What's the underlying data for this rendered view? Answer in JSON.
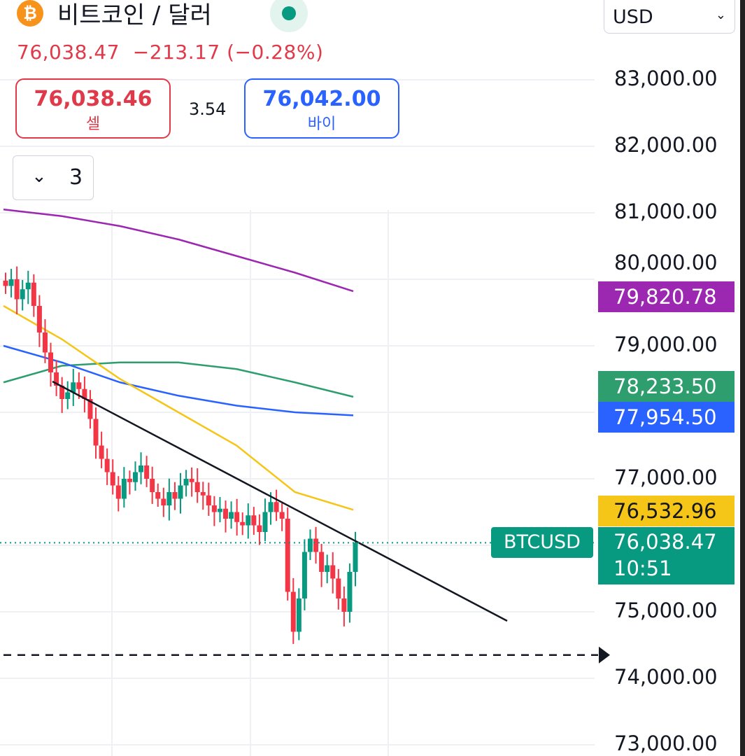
{
  "header": {
    "title": "비트코인 / 달러",
    "coin_icon": "bitcoin-icon",
    "market_status": "open",
    "price_line": "76,038.47  −213.17 (−0.28%)",
    "currency": "USD"
  },
  "trade": {
    "sell_price": "76,038.46",
    "sell_label": "셀",
    "spread": "3.54",
    "buy_price": "76,042.00",
    "buy_label": "바이"
  },
  "indicators_toggle": {
    "count": "3"
  },
  "colors": {
    "up": "#089981",
    "down": "#f23645",
    "ma_purple": "#9c27b0",
    "ma_yellow": "#f5c518",
    "ma_green": "#2e9e6e",
    "ma_blue": "#2962ff"
  },
  "chart_data": {
    "type": "candlestick",
    "symbol": "BTCUSD",
    "ylim": [
      73000,
      83400
    ],
    "yticks": [
      "83,000.00",
      "82,000.00",
      "81,000.00",
      "80,000.00",
      "79,000.00",
      "77,000.00",
      "75,000.00",
      "74,000.00",
      "73,000.00"
    ],
    "ytick_values": [
      83000,
      82000,
      81000,
      80000,
      79000,
      77000,
      75000,
      74000,
      73000
    ],
    "closes": [
      79900,
      80000,
      79700,
      79850,
      79950,
      79600,
      79200,
      78900,
      78600,
      78400,
      78200,
      78300,
      78450,
      78350,
      78200,
      77900,
      77500,
      77300,
      77100,
      76900,
      76700,
      77000,
      76950,
      77100,
      77200,
      77000,
      76800,
      76700,
      76600,
      76800,
      76700,
      76900,
      77000,
      76950,
      76800,
      76750,
      76600,
      76500,
      76550,
      76400,
      76500,
      76350,
      76300,
      76450,
      76300,
      76200,
      76500,
      76650,
      76500,
      76400,
      75300,
      74700,
      75200,
      75900,
      76100,
      75900,
      75600,
      75700,
      75500,
      75200,
      75000,
      75600,
      76038
    ],
    "moving_averages": [
      {
        "color": "#9c27b0",
        "last": "79,820.78",
        "values": [
          81050,
          80950,
          80800,
          80600,
          80350,
          80100,
          79820
        ]
      },
      {
        "color": "#2e9e6e",
        "last": "78,233.50",
        "values": [
          78450,
          78700,
          78750,
          78750,
          78650,
          78450,
          78233
        ]
      },
      {
        "color": "#2962ff",
        "last": "77,954.50",
        "values": [
          79000,
          78750,
          78450,
          78250,
          78100,
          78000,
          77954
        ]
      },
      {
        "color": "#f5c518",
        "last": "76,532.96",
        "values": [
          79600,
          79100,
          78500,
          78000,
          77500,
          76800,
          76533
        ]
      }
    ],
    "trendline": {
      "from": 78463,
      "to": 74863
    },
    "horizontal_line": 74350,
    "last_price": "76,038.47",
    "last_value": 76038,
    "countdown": "10:51"
  }
}
